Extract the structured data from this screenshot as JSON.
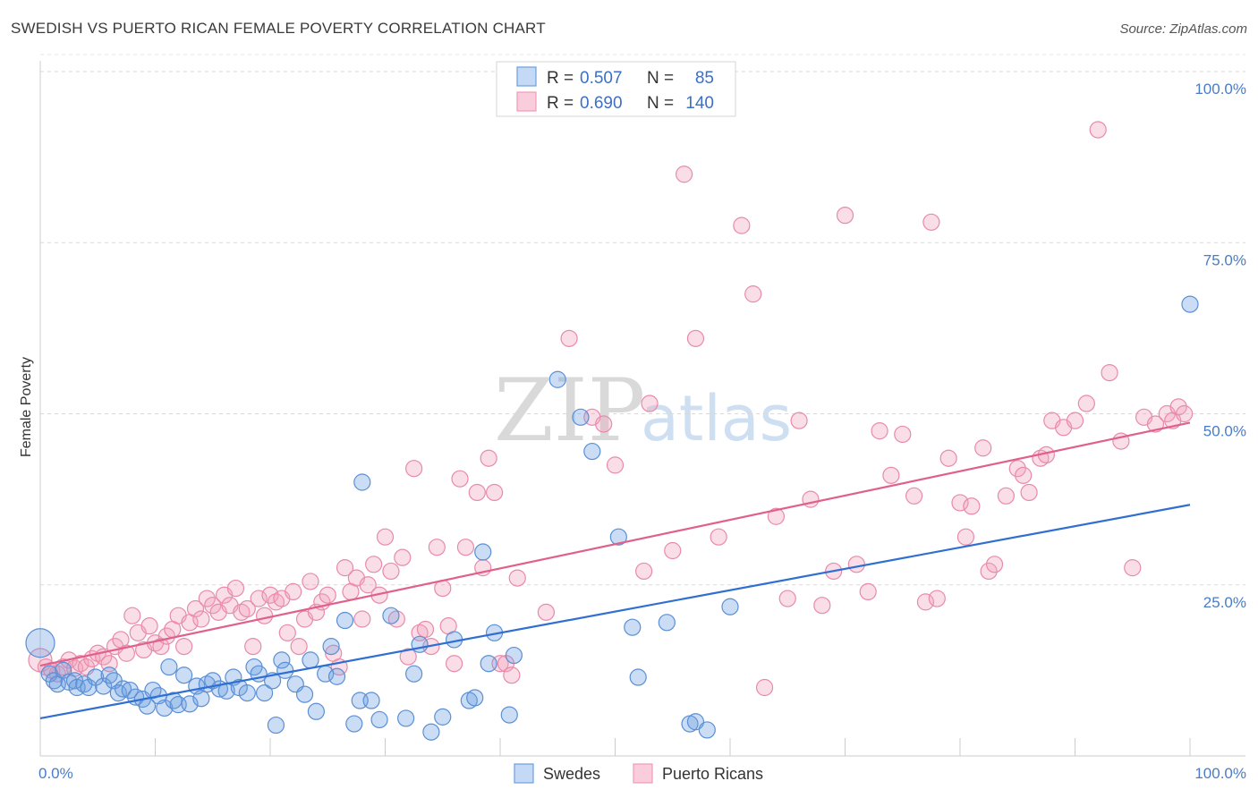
{
  "title": "SWEDISH VS PUERTO RICAN FEMALE POVERTY CORRELATION CHART",
  "source": "Source: ZipAtlas.com",
  "colors": {
    "blue": "#6a9fe0",
    "blue_line": "#2f6fd1",
    "pink": "#f1a1bb",
    "pink_line": "#e0608c"
  },
  "chart_data": {
    "type": "scatter",
    "ylabel": "Female Poverty",
    "xlim": [
      0,
      100
    ],
    "ylim": [
      0,
      100
    ],
    "x_tick_labels": [
      "0.0%",
      "100.0%"
    ],
    "y_tick_labels": [
      {
        "value": 25,
        "label": "25.0%"
      },
      {
        "value": 50,
        "label": "50.0%"
      },
      {
        "value": 75,
        "label": "75.0%"
      },
      {
        "value": 100,
        "label": "100.0%"
      }
    ],
    "grid": true,
    "legend": {
      "position": "top-center",
      "rows": [
        {
          "r_label": "R =",
          "r": "0.507",
          "n_label": "N =",
          "n": "85"
        },
        {
          "r_label": "R =",
          "r": "0.690",
          "n_label": "N =",
          "n": "140"
        }
      ]
    },
    "series": [
      {
        "name": "Swedes",
        "color": "#6a9fe0",
        "trend": {
          "x": [
            0,
            100
          ],
          "y": [
            5.5,
            36.7
          ]
        },
        "points": [
          [
            0,
            16.5
          ],
          [
            0.8,
            12
          ],
          [
            1.2,
            11
          ],
          [
            1.5,
            10.5
          ],
          [
            2,
            12.5
          ],
          [
            2.5,
            10.8
          ],
          [
            3,
            11
          ],
          [
            3.2,
            10
          ],
          [
            3.8,
            10.5
          ],
          [
            4.2,
            10
          ],
          [
            4.8,
            11.5
          ],
          [
            5.5,
            10.2
          ],
          [
            6,
            11.8
          ],
          [
            6.4,
            11
          ],
          [
            6.8,
            9.2
          ],
          [
            7.2,
            9.8
          ],
          [
            7.8,
            9.6
          ],
          [
            8.3,
            8.6
          ],
          [
            8.9,
            8.3
          ],
          [
            9.3,
            7.3
          ],
          [
            9.8,
            9.6
          ],
          [
            10.3,
            8.8
          ],
          [
            10.8,
            7
          ],
          [
            11.2,
            13
          ],
          [
            11.6,
            8.1
          ],
          [
            12,
            7.5
          ],
          [
            12.5,
            11.8
          ],
          [
            13,
            7.6
          ],
          [
            13.6,
            10.2
          ],
          [
            14,
            8.4
          ],
          [
            14.5,
            10.5
          ],
          [
            15,
            11
          ],
          [
            15.6,
            9.8
          ],
          [
            16.2,
            9.5
          ],
          [
            16.8,
            11.5
          ],
          [
            17.3,
            10
          ],
          [
            18,
            9.2
          ],
          [
            18.6,
            13
          ],
          [
            19,
            12
          ],
          [
            19.5,
            9.2
          ],
          [
            20.2,
            11
          ],
          [
            20.5,
            4.5
          ],
          [
            21,
            14
          ],
          [
            21.3,
            12.5
          ],
          [
            22.2,
            10.5
          ],
          [
            23,
            9
          ],
          [
            23.5,
            14
          ],
          [
            24,
            6.5
          ],
          [
            24.8,
            12
          ],
          [
            25.3,
            16
          ],
          [
            25.8,
            11.6
          ],
          [
            26.5,
            19.8
          ],
          [
            27.3,
            4.7
          ],
          [
            27.8,
            8.1
          ],
          [
            28,
            40
          ],
          [
            28.8,
            8.1
          ],
          [
            29.5,
            5.3
          ],
          [
            30.5,
            20.5
          ],
          [
            31.8,
            5.5
          ],
          [
            32.5,
            12
          ],
          [
            33,
            16.3
          ],
          [
            34,
            3.5
          ],
          [
            35,
            5.7
          ],
          [
            36,
            17
          ],
          [
            37.3,
            8.1
          ],
          [
            37.8,
            8.5
          ],
          [
            38.5,
            29.8
          ],
          [
            39,
            13.5
          ],
          [
            39.5,
            18
          ],
          [
            40.8,
            6
          ],
          [
            41.2,
            14.7
          ],
          [
            45,
            55
          ],
          [
            47,
            49.5
          ],
          [
            48,
            44.5
          ],
          [
            50.3,
            32
          ],
          [
            51.5,
            18.8
          ],
          [
            52,
            11.5
          ],
          [
            54.5,
            19.5
          ],
          [
            56.5,
            4.7
          ],
          [
            57,
            5
          ],
          [
            58,
            3.8
          ],
          [
            60,
            21.8
          ],
          [
            100,
            66
          ]
        ]
      },
      {
        "name": "Puerto Ricans",
        "color": "#f1a1bb",
        "trend": {
          "x": [
            0,
            100
          ],
          "y": [
            13.2,
            48.7
          ]
        },
        "points": [
          [
            0,
            14
          ],
          [
            0.5,
            13
          ],
          [
            1,
            12.5
          ],
          [
            1.5,
            12
          ],
          [
            2,
            13
          ],
          [
            2.5,
            14
          ],
          [
            3,
            12.8
          ],
          [
            3.5,
            13.5
          ],
          [
            4,
            13
          ],
          [
            4.5,
            14.2
          ],
          [
            5,
            15
          ],
          [
            5.5,
            14.5
          ],
          [
            6,
            13.5
          ],
          [
            6.5,
            16
          ],
          [
            7,
            17
          ],
          [
            7.5,
            15
          ],
          [
            8,
            20.5
          ],
          [
            8.5,
            18
          ],
          [
            9,
            15.5
          ],
          [
            9.5,
            19
          ],
          [
            10,
            16.5
          ],
          [
            10.5,
            16
          ],
          [
            11,
            17.5
          ],
          [
            11.5,
            18.5
          ],
          [
            12,
            20.5
          ],
          [
            12.5,
            16
          ],
          [
            13,
            19.5
          ],
          [
            13.5,
            21.5
          ],
          [
            14,
            20
          ],
          [
            14.5,
            23
          ],
          [
            15,
            22
          ],
          [
            15.5,
            21
          ],
          [
            16,
            23.5
          ],
          [
            16.5,
            22
          ],
          [
            17,
            24.5
          ],
          [
            17.5,
            21
          ],
          [
            18,
            21.5
          ],
          [
            18.5,
            16
          ],
          [
            19,
            23
          ],
          [
            19.5,
            20.5
          ],
          [
            20,
            23.5
          ],
          [
            20.5,
            22.5
          ],
          [
            21,
            23
          ],
          [
            21.5,
            18
          ],
          [
            22,
            24
          ],
          [
            22.5,
            16
          ],
          [
            23,
            20
          ],
          [
            23.5,
            25.5
          ],
          [
            24,
            21
          ],
          [
            24.5,
            22.5
          ],
          [
            25,
            23.5
          ],
          [
            25.5,
            15
          ],
          [
            26,
            13
          ],
          [
            26.5,
            27.5
          ],
          [
            27,
            24
          ],
          [
            27.5,
            26
          ],
          [
            28,
            20
          ],
          [
            28.5,
            25
          ],
          [
            29,
            28
          ],
          [
            29.5,
            23.5
          ],
          [
            30,
            32
          ],
          [
            30.5,
            27
          ],
          [
            31,
            20
          ],
          [
            31.5,
            29
          ],
          [
            32,
            14.5
          ],
          [
            32.5,
            42
          ],
          [
            33,
            18
          ],
          [
            33.5,
            18.5
          ],
          [
            34,
            16
          ],
          [
            34.5,
            30.5
          ],
          [
            35,
            24.5
          ],
          [
            35.5,
            19
          ],
          [
            36,
            13.5
          ],
          [
            36.5,
            40.5
          ],
          [
            37,
            30.5
          ],
          [
            38,
            38.5
          ],
          [
            38.5,
            27.5
          ],
          [
            39,
            43.5
          ],
          [
            39.5,
            38.5
          ],
          [
            40,
            13.5
          ],
          [
            40.5,
            13.5
          ],
          [
            41,
            11.8
          ],
          [
            41.5,
            26
          ],
          [
            44,
            21
          ],
          [
            46,
            61
          ],
          [
            48,
            49.5
          ],
          [
            49,
            48.5
          ],
          [
            50,
            42.5
          ],
          [
            52.5,
            27
          ],
          [
            53,
            51.5
          ],
          [
            55,
            30
          ],
          [
            56,
            85
          ],
          [
            57,
            61
          ],
          [
            59,
            32
          ],
          [
            61,
            77.5
          ],
          [
            62,
            67.5
          ],
          [
            63,
            10
          ],
          [
            64,
            35
          ],
          [
            65,
            23
          ],
          [
            66,
            49
          ],
          [
            67,
            37.5
          ],
          [
            68,
            22
          ],
          [
            69,
            27
          ],
          [
            70,
            79
          ],
          [
            71,
            28
          ],
          [
            72,
            24
          ],
          [
            73,
            47.5
          ],
          [
            74,
            41
          ],
          [
            75,
            47
          ],
          [
            76,
            38
          ],
          [
            77,
            22.5
          ],
          [
            77.5,
            78
          ],
          [
            78,
            23
          ],
          [
            79,
            43.5
          ],
          [
            80,
            37
          ],
          [
            80.5,
            32
          ],
          [
            81,
            36.5
          ],
          [
            82,
            45
          ],
          [
            82.5,
            27
          ],
          [
            83,
            28
          ],
          [
            84,
            38
          ],
          [
            85,
            42
          ],
          [
            85.5,
            41
          ],
          [
            86,
            38.5
          ],
          [
            87,
            43.5
          ],
          [
            87.5,
            44
          ],
          [
            88,
            49
          ],
          [
            89,
            48
          ],
          [
            90,
            49
          ],
          [
            91,
            51.5
          ],
          [
            92,
            91.5
          ],
          [
            93,
            56
          ],
          [
            94,
            46
          ],
          [
            95,
            27.5
          ],
          [
            96,
            49.5
          ],
          [
            97,
            48.5
          ],
          [
            98,
            50
          ],
          [
            98.5,
            49
          ],
          [
            99,
            51
          ],
          [
            99.5,
            50
          ]
        ]
      }
    ]
  },
  "bottom_legend": [
    {
      "label": "Swedes"
    },
    {
      "label": "Puerto Ricans"
    }
  ]
}
